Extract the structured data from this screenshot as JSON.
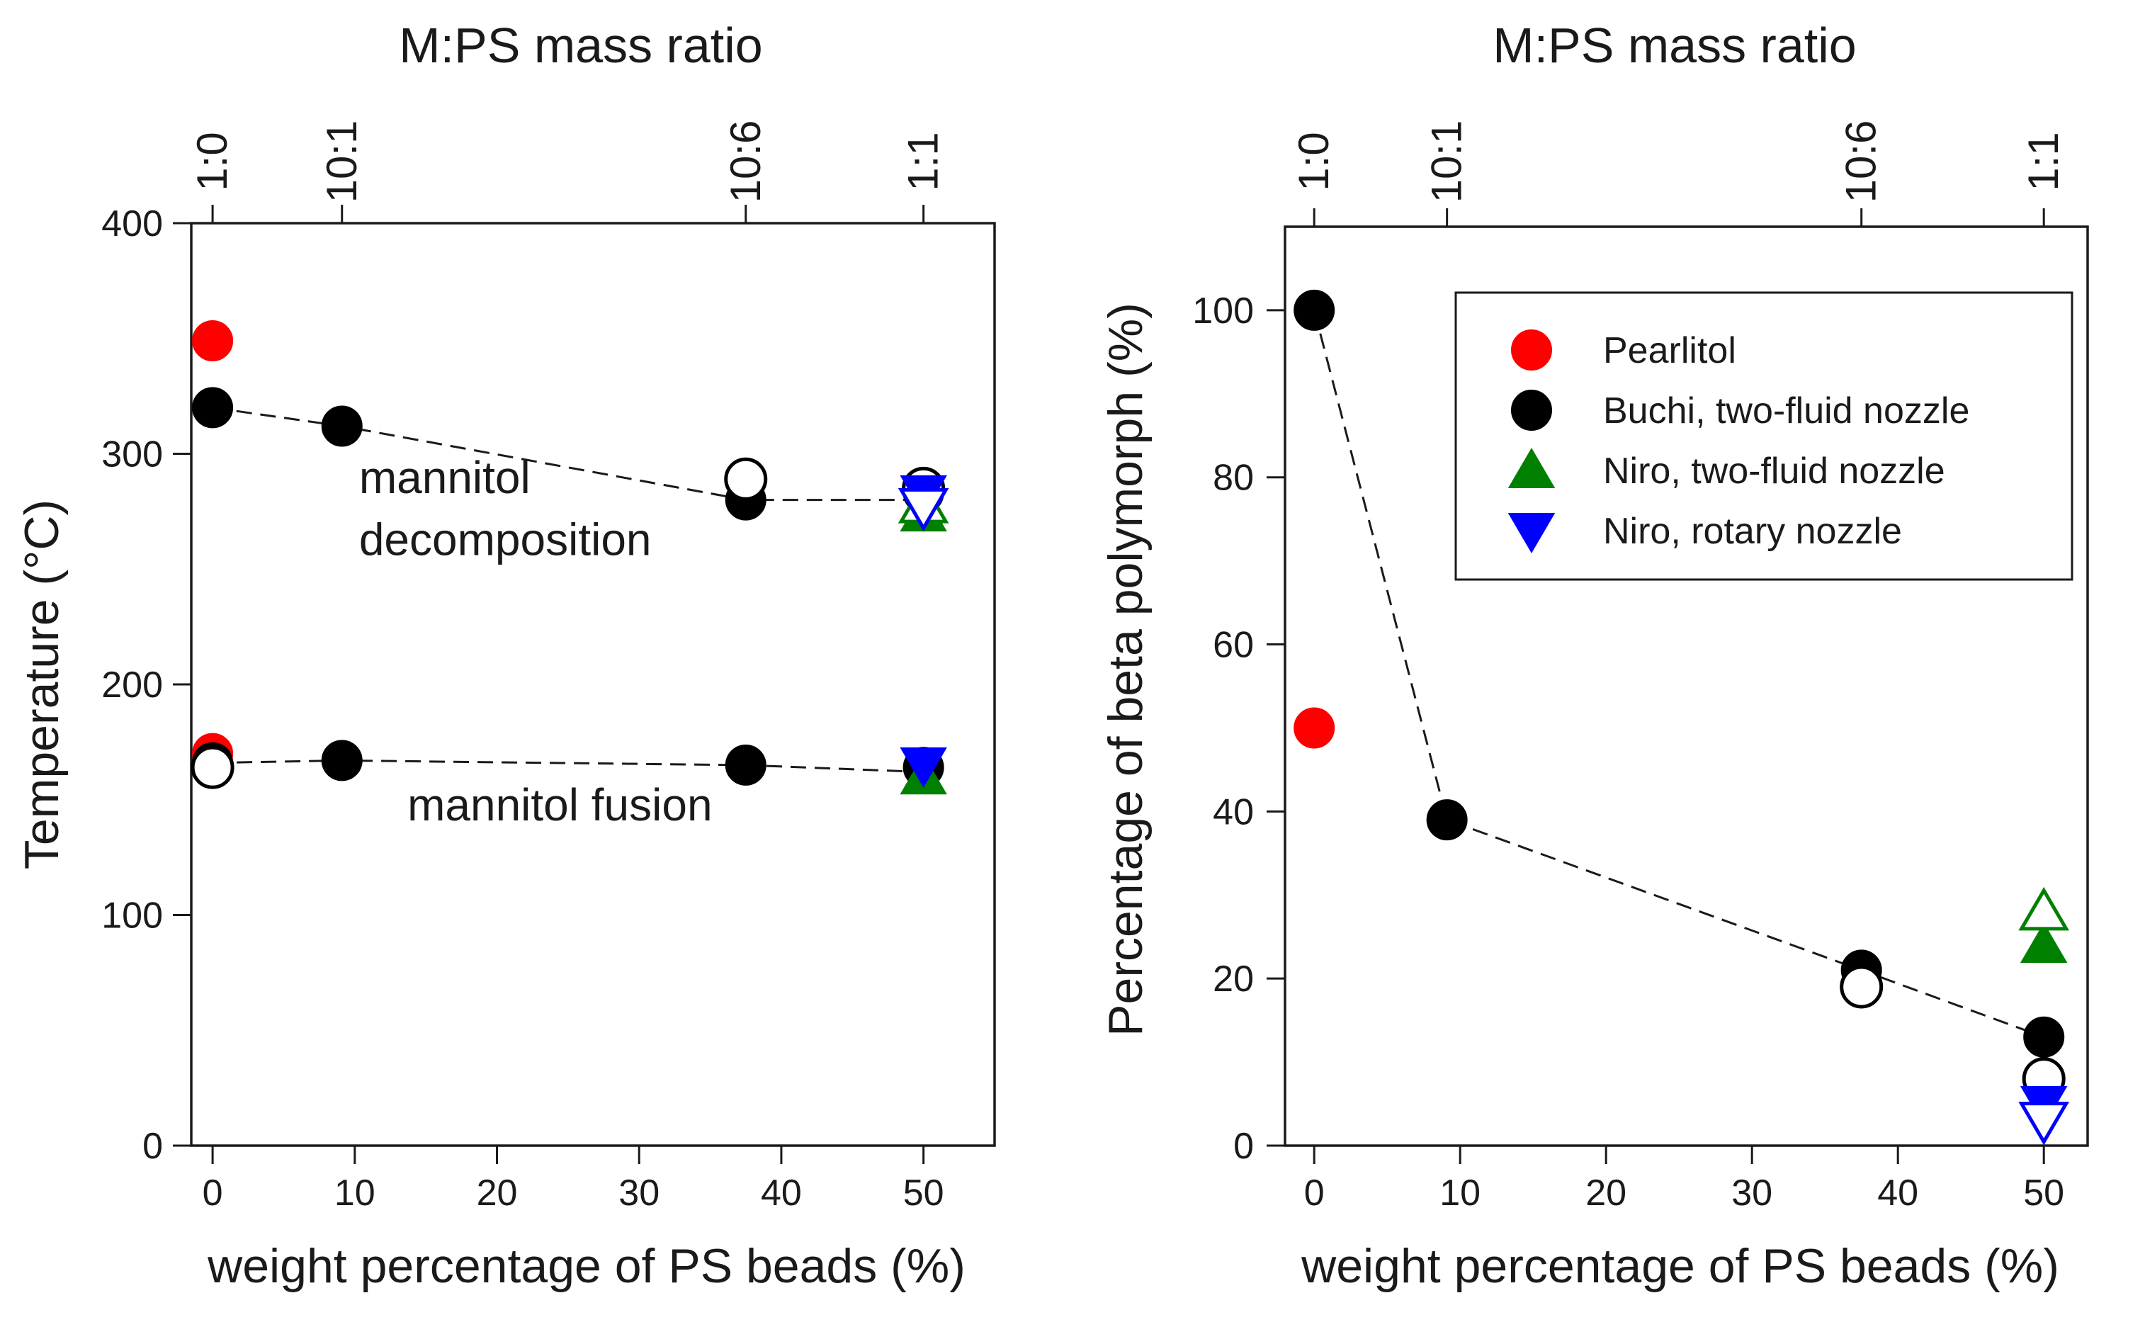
{
  "chart_data": [
    {
      "type": "scatter",
      "top_title": "M:PS mass ratio",
      "top_ticks": [
        {
          "x": 0,
          "label": "1:0"
        },
        {
          "x": 9.1,
          "label": "10:1"
        },
        {
          "x": 37.5,
          "label": "10:6"
        },
        {
          "x": 50,
          "label": "1:1"
        }
      ],
      "xlabel": "weight percentage of PS beads (%)",
      "ylabel": "Temperature (°C)",
      "xlim": [
        -1.5,
        55
      ],
      "ylim": [
        0,
        400
      ],
      "x_ticks": [
        0,
        10,
        20,
        30,
        40,
        50
      ],
      "y_ticks": [
        0,
        100,
        200,
        300,
        400
      ],
      "annotations": [
        {
          "text": "mannitol",
          "x": 10.3,
          "y": 283
        },
        {
          "text": "decomposition",
          "x": 10.3,
          "y": 256
        },
        {
          "text": "mannitol fusion",
          "x": 13.7,
          "y": 141
        }
      ],
      "dashed_lines": [
        {
          "x": [
            0,
            9.1,
            37.5,
            50
          ],
          "y": [
            320,
            312,
            280,
            280
          ]
        },
        {
          "x": [
            0,
            9.1,
            37.5,
            50
          ],
          "y": [
            166,
            167,
            165,
            162
          ]
        }
      ],
      "series": [
        {
          "name": "Pearlitol",
          "marker": "circle-filled",
          "color": "#ff0000",
          "x": [
            0,
            0
          ],
          "y": [
            349,
            170
          ]
        },
        {
          "name": "Buchi, two-fluid nozzle",
          "marker": "circle-filled",
          "color": "#000000",
          "x": [
            0,
            9.1,
            37.5,
            50,
            0,
            9.1,
            37.5,
            50
          ],
          "y": [
            320,
            312,
            280,
            283,
            166,
            167,
            165,
            164
          ]
        },
        {
          "marker": "circle-open",
          "color": "#000000",
          "x": [
            37.5,
            50,
            0
          ],
          "y": [
            289,
            285,
            164
          ]
        },
        {
          "name": "Niro, two-fluid nozzle",
          "marker": "triangle-up-filled",
          "color": "#008000",
          "x": [
            50,
            50
          ],
          "y": [
            274,
            160
          ]
        },
        {
          "marker": "triangle-up-open",
          "color": "#008000",
          "x": [
            50
          ],
          "y": [
            278
          ]
        },
        {
          "name": "Niro, rotary nozzle",
          "marker": "triangle-down-filled",
          "color": "#0000ff",
          "x": [
            50,
            50
          ],
          "y": [
            283,
            165
          ]
        },
        {
          "marker": "triangle-down-open",
          "color": "#0000ff",
          "x": [
            50
          ],
          "y": [
            277
          ]
        }
      ]
    },
    {
      "type": "scatter",
      "top_title": "M:PS mass ratio",
      "top_ticks": [
        {
          "x": 0,
          "label": "1:0"
        },
        {
          "x": 9.1,
          "label": "10:1"
        },
        {
          "x": 37.5,
          "label": "10:6"
        },
        {
          "x": 50,
          "label": "1:1"
        }
      ],
      "xlabel": "weight percentage of PS beads (%)",
      "ylabel": "Percentage of beta polymorph (%)",
      "xlim": [
        -2,
        53
      ],
      "ylim": [
        0,
        110
      ],
      "x_ticks": [
        0,
        10,
        20,
        30,
        40,
        50
      ],
      "y_ticks": [
        0,
        20,
        40,
        60,
        80,
        100
      ],
      "legend_position": "top-right",
      "legend": [
        {
          "label": "Pearlitol",
          "marker": "circle-filled",
          "color": "#ff0000"
        },
        {
          "label": "Buchi, two-fluid nozzle",
          "marker": "circle-filled",
          "color": "#000000"
        },
        {
          "label": "Niro, two-fluid nozzle",
          "marker": "triangle-up-filled",
          "color": "#008000"
        },
        {
          "label": "Niro, rotary nozzle",
          "marker": "triangle-down-filled",
          "color": "#0000ff"
        }
      ],
      "dashed_lines": [
        {
          "x": [
            0,
            9.1,
            37.5,
            50
          ],
          "y": [
            100,
            39,
            21,
            13
          ]
        }
      ],
      "series": [
        {
          "name": "Pearlitol",
          "marker": "circle-filled",
          "color": "#ff0000",
          "x": [
            0
          ],
          "y": [
            50
          ]
        },
        {
          "name": "Buchi, two-fluid nozzle",
          "marker": "circle-filled",
          "color": "#000000",
          "x": [
            0,
            9.1,
            37.5,
            50
          ],
          "y": [
            100,
            39,
            21,
            13
          ]
        },
        {
          "marker": "circle-open",
          "color": "#000000",
          "x": [
            37.5,
            50
          ],
          "y": [
            19,
            8
          ]
        },
        {
          "name": "Niro, two-fluid nozzle",
          "marker": "triangle-up-filled",
          "color": "#008000",
          "x": [
            50
          ],
          "y": [
            24
          ]
        },
        {
          "marker": "triangle-up-open",
          "color": "#008000",
          "x": [
            50
          ],
          "y": [
            28
          ]
        },
        {
          "name": "Niro, rotary nozzle",
          "marker": "triangle-down-filled",
          "color": "#0000ff",
          "x": [
            50
          ],
          "y": [
            5
          ]
        },
        {
          "marker": "triangle-down-open",
          "color": "#0000ff",
          "x": [
            50
          ],
          "y": [
            3
          ]
        }
      ]
    }
  ]
}
